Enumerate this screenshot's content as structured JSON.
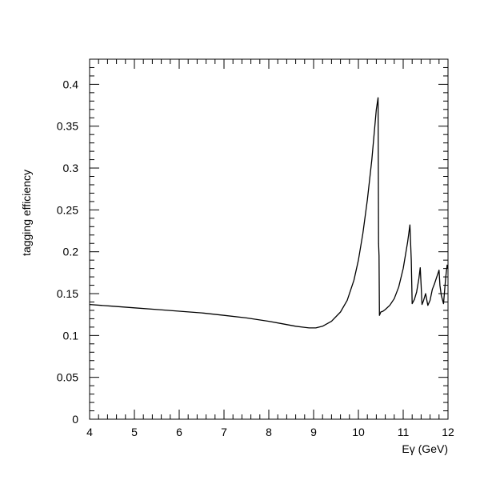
{
  "chart_data": {
    "type": "line",
    "title": "",
    "xlabel": "Eγ (GeV)",
    "ylabel": "tagging efficiency",
    "xlim": [
      4,
      12
    ],
    "ylim": [
      0,
      0.43
    ],
    "grid": false,
    "x_ticks": [
      4,
      5,
      6,
      7,
      8,
      9,
      10,
      11,
      12
    ],
    "x_tick_labels": [
      "4",
      "5",
      "6",
      "7",
      "8",
      "9",
      "10",
      "11",
      "12"
    ],
    "y_ticks": [
      0,
      0.05,
      0.1,
      0.15,
      0.2,
      0.25,
      0.3,
      0.35,
      0.4
    ],
    "y_tick_labels": [
      "0",
      "0.05",
      "0.1",
      "0.15",
      "0.2",
      "0.25",
      "0.3",
      "0.35",
      "0.4"
    ],
    "series": [
      {
        "name": "",
        "color": "#000000",
        "x": [
          4.0,
          4.5,
          5.0,
          5.5,
          6.0,
          6.5,
          7.0,
          7.5,
          8.0,
          8.3,
          8.6,
          8.9,
          9.05,
          9.2,
          9.4,
          9.6,
          9.75,
          9.9,
          10.0,
          10.1,
          10.2,
          10.3,
          10.4,
          10.44,
          10.45,
          10.46,
          10.47,
          10.5,
          10.55,
          10.6,
          10.7,
          10.8,
          10.9,
          11.0,
          11.1,
          11.15,
          11.18,
          11.2,
          11.25,
          11.3,
          11.35,
          11.38,
          11.4,
          11.42,
          11.45,
          11.5,
          11.55,
          11.6,
          11.65,
          11.7,
          11.75,
          11.8,
          11.82,
          11.85,
          11.9,
          11.95,
          11.98,
          12.0
        ],
        "y": [
          0.137,
          0.135,
          0.133,
          0.131,
          0.129,
          0.127,
          0.124,
          0.121,
          0.117,
          0.114,
          0.111,
          0.109,
          0.109,
          0.111,
          0.117,
          0.128,
          0.142,
          0.166,
          0.19,
          0.222,
          0.262,
          0.31,
          0.37,
          0.384,
          0.21,
          0.195,
          0.124,
          0.128,
          0.129,
          0.131,
          0.136,
          0.144,
          0.158,
          0.18,
          0.212,
          0.232,
          0.19,
          0.138,
          0.143,
          0.152,
          0.168,
          0.181,
          0.16,
          0.137,
          0.141,
          0.15,
          0.136,
          0.142,
          0.155,
          0.162,
          0.17,
          0.178,
          0.16,
          0.148,
          0.138,
          0.17,
          0.184,
          0.18
        ]
      }
    ]
  }
}
